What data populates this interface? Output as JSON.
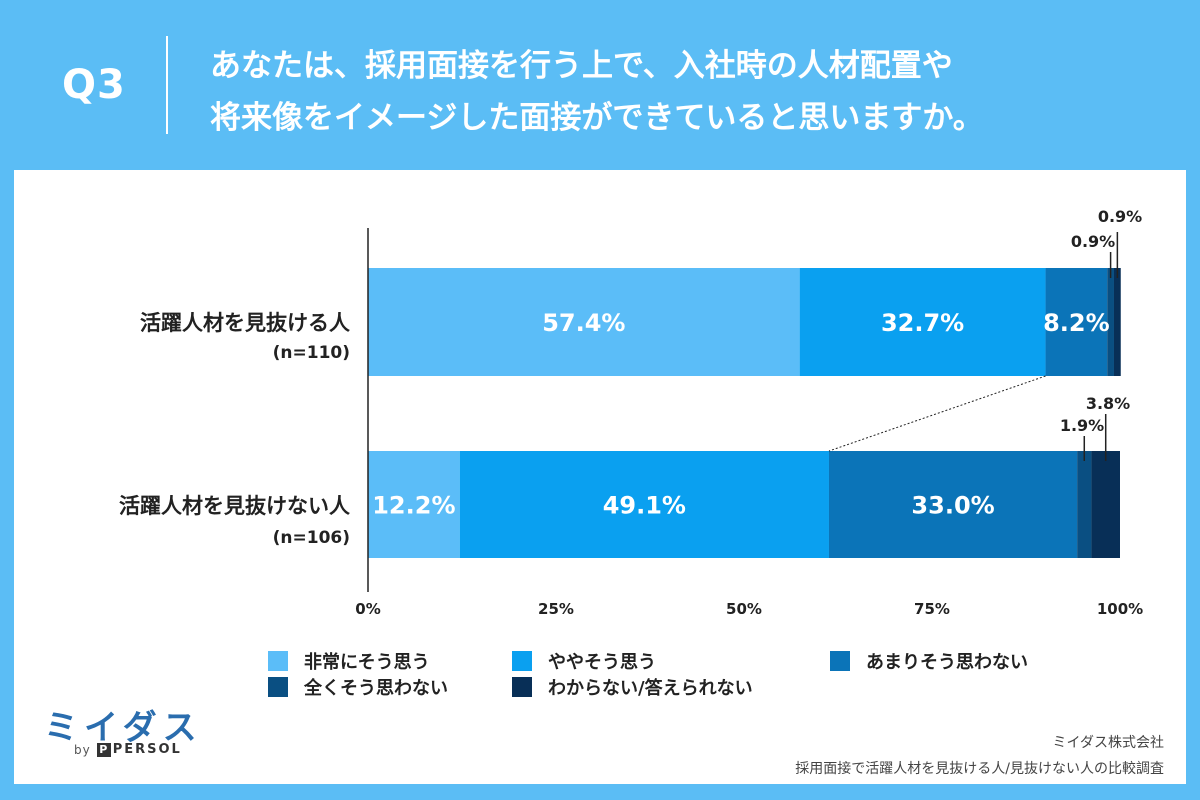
{
  "header": {
    "qnum": "Q3",
    "question_line1": "あなたは、採用面接を行う上で、入社時の人材配置や",
    "question_line2": "将来像をイメージした面接ができていると思いますか。"
  },
  "chart_data": {
    "type": "bar",
    "orientation": "horizontal",
    "stacked": true,
    "percent": true,
    "categories": [
      {
        "label": "活躍人材を見抜ける人",
        "n": "(n=110)"
      },
      {
        "label": "活躍人材を見抜けない人",
        "n": "(n=106)"
      }
    ],
    "series": [
      {
        "name": "非常にそう思う",
        "color": "#5bbdf8",
        "values": [
          57.4,
          12.2
        ]
      },
      {
        "name": "ややそう思う",
        "color": "#0aa0f0",
        "values": [
          32.7,
          49.1
        ]
      },
      {
        "name": "あまりそう思わない",
        "color": "#0b74b8",
        "values": [
          8.2,
          33.0
        ]
      },
      {
        "name": "全くそう思わない",
        "color": "#0a4f82",
        "values": [
          0.9,
          1.9
        ]
      },
      {
        "name": "わからない/答えられない",
        "color": "#082f57",
        "values": [
          0.9,
          3.8
        ]
      }
    ],
    "value_labels": [
      [
        "57.4%",
        "32.7%",
        "8.2%",
        "0.9%",
        "0.9%"
      ],
      [
        "12.2%",
        "49.1%",
        "33.0%",
        "1.9%",
        "3.8%"
      ]
    ],
    "xlim": [
      0,
      100
    ],
    "xticks": [
      "0%",
      "25%",
      "50%",
      "75%",
      "100%"
    ],
    "legend_position": "bottom"
  },
  "legend": [
    {
      "label": "非常にそう思う",
      "color": "#5bbdf8"
    },
    {
      "label": "ややそう思う",
      "color": "#0aa0f0"
    },
    {
      "label": "あまりそう思わない",
      "color": "#0b74b8"
    },
    {
      "label": "全くそう思わない",
      "color": "#0a4f82"
    },
    {
      "label": "わからない/答えられない",
      "color": "#082f57"
    }
  ],
  "logo": {
    "main": "ミイダス",
    "by": "by",
    "p": "P",
    "persol": "PERSOL"
  },
  "source": {
    "company": "ミイダス株式会社",
    "survey": "採用面接で活躍人材を見抜ける人/見抜けない人の比較調査"
  }
}
